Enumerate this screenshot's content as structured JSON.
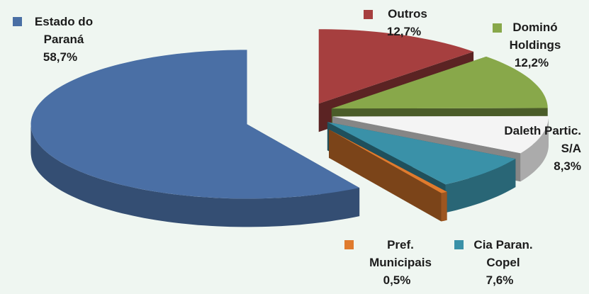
{
  "chart_data": {
    "type": "pie",
    "categories": [
      "Estado do Paraná",
      "Outros",
      "Dominó Holdings",
      "Daleth Partic. S/A",
      "Cia Paran. Copel",
      "Pref. Municipais"
    ],
    "values": [
      58.7,
      12.7,
      12.2,
      8.3,
      7.6,
      0.5
    ],
    "value_labels": [
      "58,7%",
      "12,7%",
      "12,2%",
      "8,3%",
      "7,6%",
      "0,5%"
    ],
    "colors": [
      "#4a6fa5",
      "#a63f3f",
      "#88a84a",
      "#f4f4f4",
      "#3a91a8",
      "#e07b2e"
    ]
  }
}
